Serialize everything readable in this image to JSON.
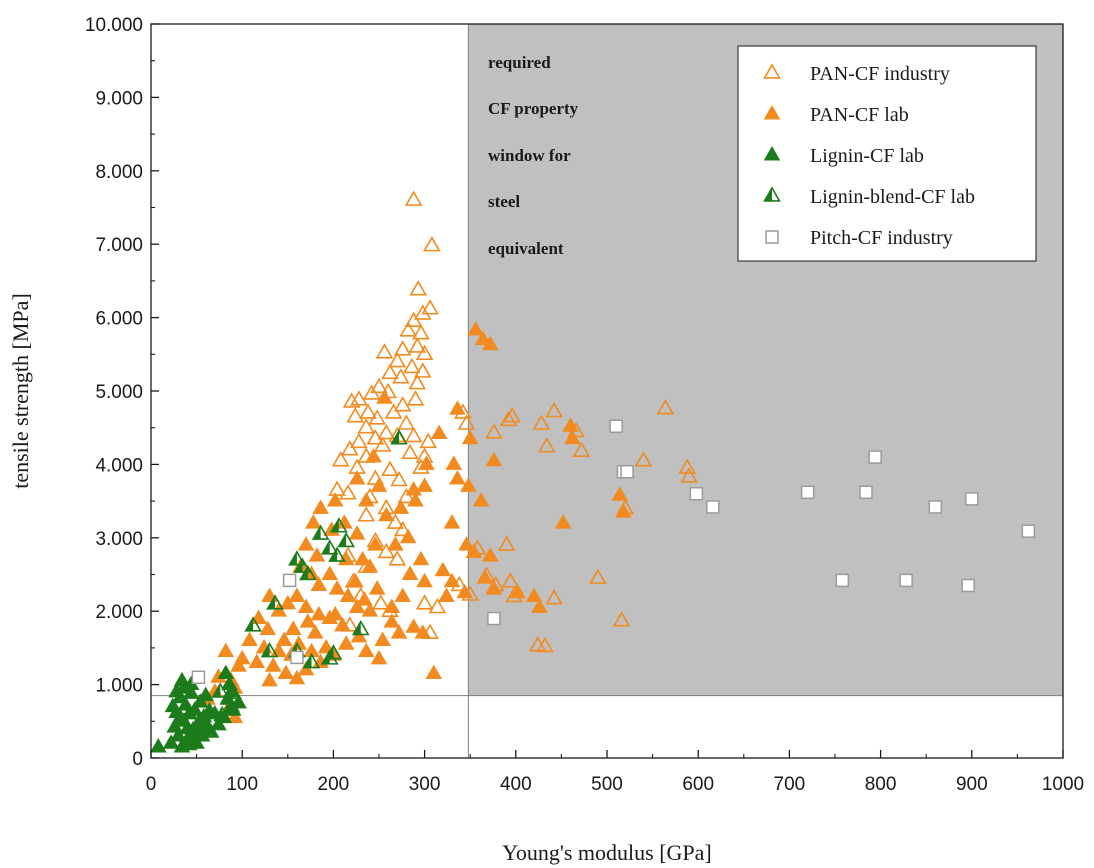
{
  "chart_data": {
    "type": "scatter",
    "xlabel": "Young's modulus [GPa]",
    "ylabel": "tensile strength [MPa]",
    "xlim": [
      0,
      1000
    ],
    "ylim": [
      0,
      10000
    ],
    "x_ticks": [
      "0",
      "100",
      "200",
      "300",
      "400",
      "500",
      "600",
      "700",
      "800",
      "900",
      "1000"
    ],
    "y_ticks": [
      "0",
      "1.000",
      "2.000",
      "3.000",
      "4.000",
      "5.000",
      "6.000",
      "7.000",
      "8.000",
      "9.000",
      "10.000"
    ],
    "grid": false,
    "legend_position": "top-right",
    "region": {
      "x_min": 348,
      "y_min": 850,
      "fill": "#c0c0c0",
      "annotation": [
        "required",
        "CF property",
        "window for",
        "steel",
        "equivalent"
      ]
    },
    "colors": {
      "orange": "#f28a1f",
      "green": "#1c7c1c",
      "gray": "#9a9a9a"
    },
    "series": [
      {
        "name": "PAN-CF industry",
        "marker": "triangle-open",
        "color": "#f28a1f",
        "points": [
          [
            288,
            7600
          ],
          [
            308,
            6980
          ],
          [
            293,
            6380
          ],
          [
            306,
            6120
          ],
          [
            298,
            6050
          ],
          [
            288,
            5950
          ],
          [
            296,
            5780
          ],
          [
            282,
            5820
          ],
          [
            292,
            5600
          ],
          [
            276,
            5560
          ],
          [
            300,
            5500
          ],
          [
            256,
            5520
          ],
          [
            270,
            5400
          ],
          [
            286,
            5320
          ],
          [
            262,
            5240
          ],
          [
            298,
            5260
          ],
          [
            274,
            5180
          ],
          [
            292,
            5100
          ],
          [
            250,
            5050
          ],
          [
            260,
            4980
          ],
          [
            242,
            4960
          ],
          [
            228,
            4880
          ],
          [
            220,
            4850
          ],
          [
            276,
            4800
          ],
          [
            290,
            4880
          ],
          [
            238,
            4700
          ],
          [
            266,
            4700
          ],
          [
            248,
            4620
          ],
          [
            224,
            4650
          ],
          [
            280,
            4550
          ],
          [
            236,
            4500
          ],
          [
            258,
            4420
          ],
          [
            270,
            4380
          ],
          [
            288,
            4380
          ],
          [
            246,
            4350
          ],
          [
            228,
            4300
          ],
          [
            254,
            4250
          ],
          [
            304,
            4300
          ],
          [
            218,
            4200
          ],
          [
            284,
            4150
          ],
          [
            236,
            4100
          ],
          [
            300,
            4100
          ],
          [
            208,
            4050
          ],
          [
            226,
            3950
          ],
          [
            262,
            3920
          ],
          [
            296,
            3950
          ],
          [
            246,
            3800
          ],
          [
            272,
            3780
          ],
          [
            204,
            3650
          ],
          [
            216,
            3600
          ],
          [
            240,
            3550
          ],
          [
            280,
            3550
          ],
          [
            258,
            3400
          ],
          [
            236,
            3300
          ],
          [
            268,
            3200
          ],
          [
            276,
            3100
          ],
          [
            246,
            2950
          ],
          [
            258,
            2800
          ],
          [
            216,
            2750
          ],
          [
            270,
            2700
          ],
          [
            236,
            2600
          ],
          [
            300,
            2100
          ],
          [
            306,
            1700
          ],
          [
            314,
            2050
          ],
          [
            222,
            2400
          ],
          [
            230,
            2200
          ],
          [
            252,
            2100
          ],
          [
            218,
            1800
          ],
          [
            262,
            2000
          ],
          [
            342,
            4700
          ],
          [
            346,
            4550
          ],
          [
            338,
            2350
          ],
          [
            350,
            2220
          ],
          [
            358,
            2850
          ],
          [
            368,
            2480
          ],
          [
            378,
            2350
          ],
          [
            376,
            4430
          ],
          [
            392,
            4600
          ],
          [
            396,
            4650
          ],
          [
            390,
            2900
          ],
          [
            394,
            2400
          ],
          [
            398,
            2200
          ],
          [
            428,
            4550
          ],
          [
            442,
            4720
          ],
          [
            434,
            4240
          ],
          [
            442,
            2170
          ],
          [
            424,
            1530
          ],
          [
            432,
            1520
          ],
          [
            466,
            4450
          ],
          [
            472,
            4180
          ],
          [
            490,
            2450
          ],
          [
            516,
            1870
          ],
          [
            520,
            3400
          ],
          [
            540,
            4050
          ],
          [
            564,
            4760
          ],
          [
            588,
            3950
          ],
          [
            590,
            3830
          ]
        ]
      },
      {
        "name": "PAN-CF lab",
        "marker": "triangle-filled",
        "color": "#f28a1f",
        "points": [
          [
            356,
            5830
          ],
          [
            364,
            5700
          ],
          [
            372,
            5630
          ],
          [
            336,
            4750
          ],
          [
            350,
            4350
          ],
          [
            316,
            4420
          ],
          [
            302,
            4000
          ],
          [
            332,
            4000
          ],
          [
            376,
            4050
          ],
          [
            336,
            3800
          ],
          [
            348,
            3700
          ],
          [
            362,
            3500
          ],
          [
            330,
            3200
          ],
          [
            346,
            2900
          ],
          [
            354,
            2800
          ],
          [
            372,
            2750
          ],
          [
            320,
            2550
          ],
          [
            366,
            2450
          ],
          [
            330,
            2400
          ],
          [
            344,
            2250
          ],
          [
            376,
            2300
          ],
          [
            324,
            2200
          ],
          [
            310,
            1150
          ],
          [
            288,
            3650
          ],
          [
            300,
            3700
          ],
          [
            274,
            3400
          ],
          [
            290,
            3500
          ],
          [
            282,
            3000
          ],
          [
            296,
            2700
          ],
          [
            268,
            2900
          ],
          [
            284,
            2500
          ],
          [
            300,
            2400
          ],
          [
            276,
            2200
          ],
          [
            264,
            2050
          ],
          [
            288,
            1780
          ],
          [
            298,
            1700
          ],
          [
            244,
            4100
          ],
          [
            256,
            4900
          ],
          [
            250,
            3700
          ],
          [
            236,
            3500
          ],
          [
            258,
            3300
          ],
          [
            226,
            3050
          ],
          [
            246,
            2900
          ],
          [
            232,
            2700
          ],
          [
            214,
            2700
          ],
          [
            240,
            2600
          ],
          [
            224,
            2400
          ],
          [
            248,
            2300
          ],
          [
            204,
            2300
          ],
          [
            216,
            2200
          ],
          [
            196,
            2500
          ],
          [
            234,
            2150
          ],
          [
            202,
            1950
          ],
          [
            226,
            2050
          ],
          [
            210,
            1800
          ],
          [
            240,
            2000
          ],
          [
            196,
            1900
          ],
          [
            212,
            3200
          ],
          [
            198,
            3100
          ],
          [
            186,
            3400
          ],
          [
            202,
            3500
          ],
          [
            226,
            3800
          ],
          [
            178,
            3200
          ],
          [
            170,
            2900
          ],
          [
            182,
            2750
          ],
          [
            164,
            2600
          ],
          [
            176,
            2500
          ],
          [
            184,
            2350
          ],
          [
            160,
            2200
          ],
          [
            170,
            2050
          ],
          [
            150,
            2100
          ],
          [
            184,
            1950
          ],
          [
            172,
            1850
          ],
          [
            140,
            2000
          ],
          [
            156,
            1750
          ],
          [
            180,
            1700
          ],
          [
            146,
            1600
          ],
          [
            162,
            1550
          ],
          [
            130,
            2200
          ],
          [
            118,
            1900
          ],
          [
            128,
            1750
          ],
          [
            108,
            1600
          ],
          [
            124,
            1500
          ],
          [
            140,
            1450
          ],
          [
            154,
            1400
          ],
          [
            176,
            1450
          ],
          [
            192,
            1500
          ],
          [
            116,
            1300
          ],
          [
            134,
            1250
          ],
          [
            148,
            1150
          ],
          [
            160,
            1080
          ],
          [
            130,
            1050
          ],
          [
            100,
            1350
          ],
          [
            82,
            1450
          ],
          [
            96,
            1250
          ],
          [
            88,
            1050
          ],
          [
            70,
            900
          ],
          [
            92,
            950
          ],
          [
            62,
            800
          ],
          [
            84,
            650
          ],
          [
            92,
            550
          ],
          [
            74,
            1100
          ],
          [
            264,
            1850
          ],
          [
            272,
            1700
          ],
          [
            254,
            1600
          ],
          [
            228,
            1650
          ],
          [
            214,
            1550
          ],
          [
            236,
            1450
          ],
          [
            250,
            1350
          ],
          [
            200,
            1400
          ],
          [
            186,
            1300
          ],
          [
            170,
            1200
          ],
          [
            420,
            2200
          ],
          [
            426,
            2050
          ],
          [
            402,
            2250
          ],
          [
            452,
            3200
          ],
          [
            460,
            4520
          ],
          [
            462,
            4350
          ],
          [
            514,
            3580
          ],
          [
            518,
            3350
          ]
        ]
      },
      {
        "name": "Lignin-CF lab",
        "marker": "triangle-filled",
        "color": "#1c7c1c",
        "points": [
          [
            8,
            150
          ],
          [
            22,
            200
          ],
          [
            26,
            420
          ],
          [
            28,
            620
          ],
          [
            30,
            300
          ],
          [
            32,
            820
          ],
          [
            34,
            1050
          ],
          [
            36,
            500
          ],
          [
            38,
            720
          ],
          [
            40,
            250
          ],
          [
            42,
            600
          ],
          [
            44,
            880
          ],
          [
            46,
            380
          ],
          [
            48,
            650
          ],
          [
            50,
            200
          ],
          [
            52,
            480
          ],
          [
            54,
            760
          ],
          [
            56,
            300
          ],
          [
            58,
            560
          ],
          [
            60,
            850
          ],
          [
            62,
            420
          ],
          [
            64,
            640
          ],
          [
            66,
            350
          ],
          [
            70,
            600
          ],
          [
            74,
            450
          ],
          [
            28,
            900
          ],
          [
            36,
            950
          ],
          [
            44,
            1000
          ],
          [
            32,
            550
          ],
          [
            40,
            400
          ],
          [
            24,
            700
          ],
          [
            48,
            300
          ],
          [
            56,
            420
          ],
          [
            34,
            150
          ],
          [
            42,
            180
          ],
          [
            82,
            1150
          ],
          [
            86,
            1000
          ],
          [
            84,
            800
          ],
          [
            90,
            650
          ],
          [
            96,
            750
          ],
          [
            80,
            550
          ],
          [
            88,
            900
          ]
        ]
      },
      {
        "name": "Lignin-blend-CF lab",
        "marker": "triangle-half",
        "color": "#1c7c1c",
        "points": [
          [
            272,
            4350
          ],
          [
            206,
            3150
          ],
          [
            214,
            2950
          ],
          [
            196,
            2850
          ],
          [
            186,
            3050
          ],
          [
            204,
            2750
          ],
          [
            160,
            2700
          ],
          [
            166,
            2600
          ],
          [
            172,
            2500
          ],
          [
            136,
            2100
          ],
          [
            112,
            1800
          ],
          [
            130,
            1450
          ],
          [
            160,
            1450
          ],
          [
            176,
            1300
          ],
          [
            196,
            1350
          ],
          [
            200,
            1420
          ],
          [
            230,
            1750
          ],
          [
            90,
            880
          ],
          [
            88,
            700
          ],
          [
            76,
            900
          ],
          [
            78,
            580
          ]
        ]
      },
      {
        "name": "Pitch-CF industry",
        "marker": "square-open",
        "color": "#9a9a9a",
        "points": [
          [
            152,
            2420
          ],
          [
            160,
            1370
          ],
          [
            52,
            1100
          ],
          [
            376,
            1900
          ],
          [
            510,
            4520
          ],
          [
            518,
            3900
          ],
          [
            522,
            3900
          ],
          [
            598,
            3600
          ],
          [
            616,
            3420
          ],
          [
            720,
            3620
          ],
          [
            758,
            2420
          ],
          [
            784,
            3620
          ],
          [
            794,
            4100
          ],
          [
            828,
            2420
          ],
          [
            860,
            3420
          ],
          [
            896,
            2350
          ],
          [
            900,
            3530
          ],
          [
            962,
            3090
          ]
        ]
      }
    ]
  }
}
